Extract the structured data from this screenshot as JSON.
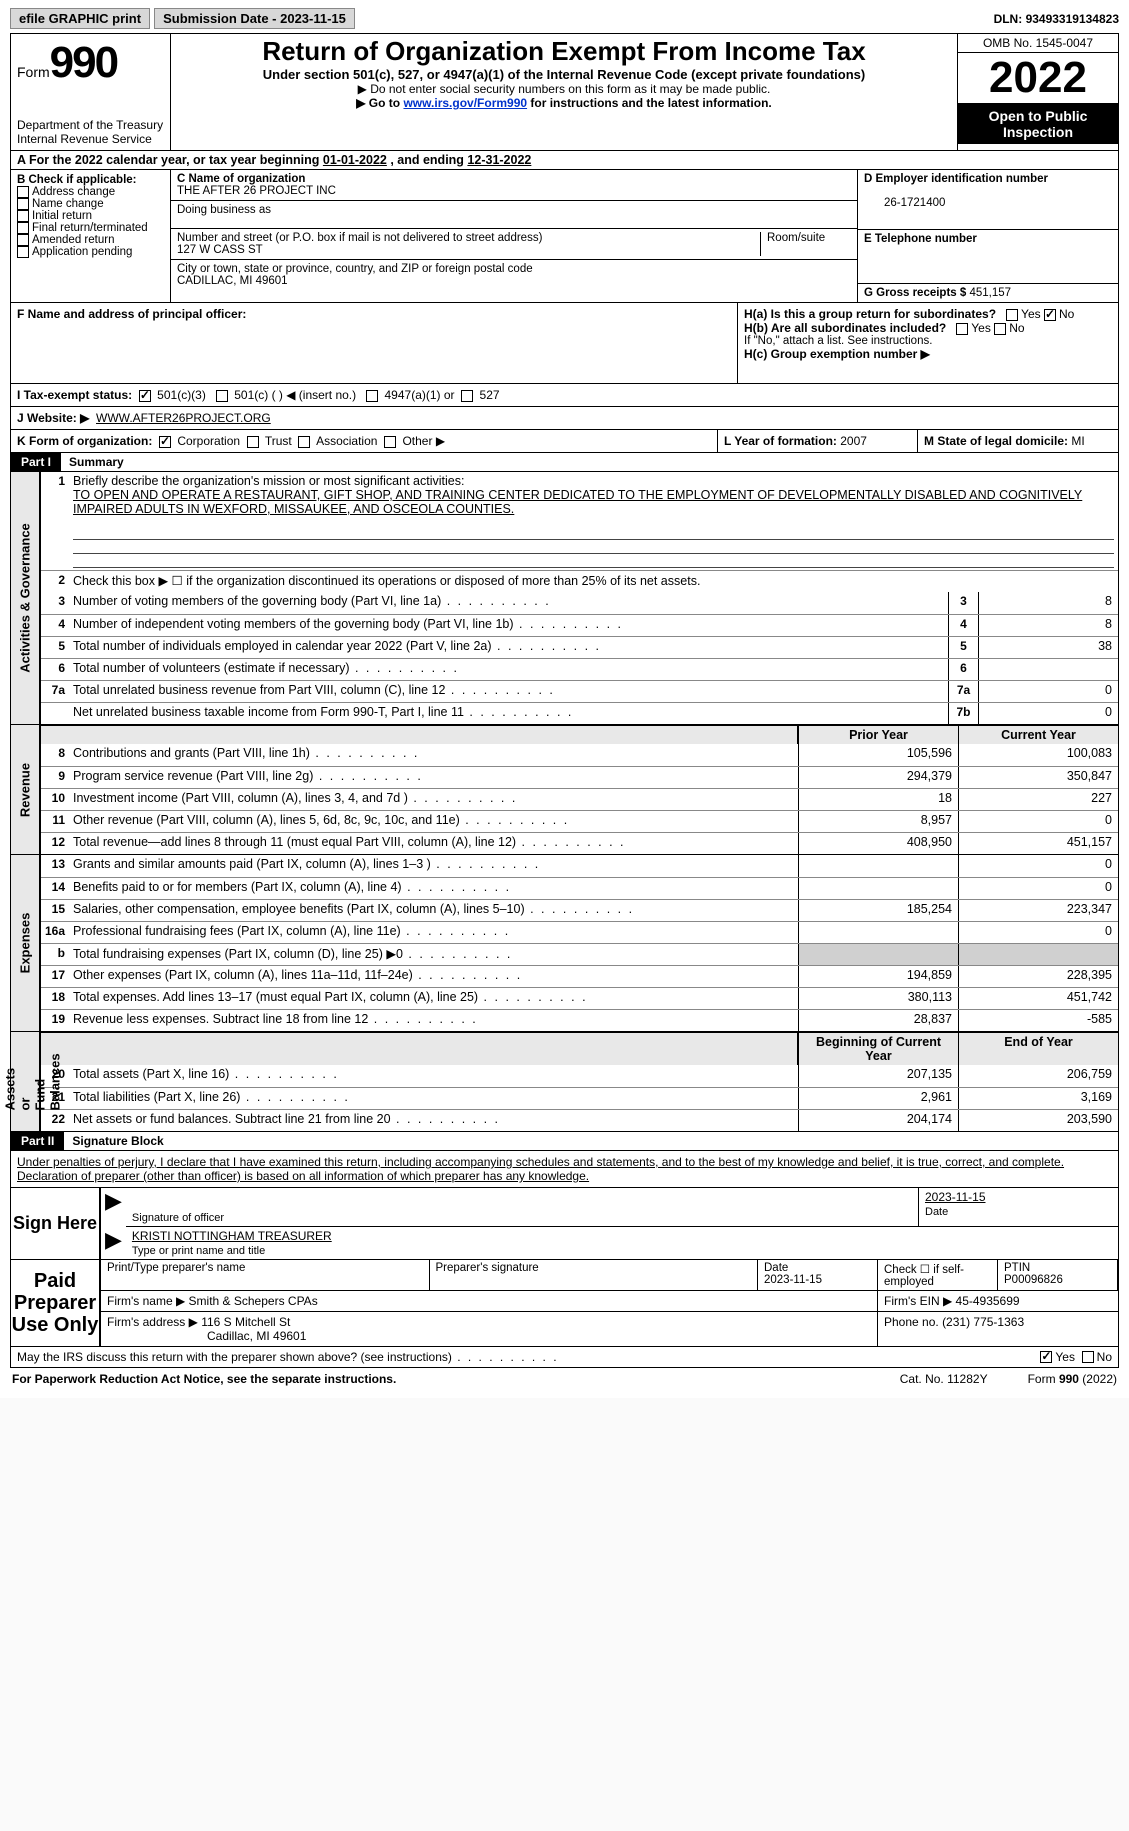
{
  "topbar": {
    "efile": "efile GRAPHIC print",
    "subdate_label": "Submission Date - ",
    "subdate": "2023-11-15",
    "dln_label": "DLN: ",
    "dln": "93493319134823"
  },
  "header": {
    "form_word": "Form",
    "form_num": "990",
    "title": "Return of Organization Exempt From Income Tax",
    "subtitle": "Under section 501(c), 527, or 4947(a)(1) of the Internal Revenue Code (except private foundations)",
    "note1": "▶ Do not enter social security numbers on this form as it may be made public.",
    "note2_pre": "▶ Go to ",
    "note2_link": "www.irs.gov/Form990",
    "note2_post": " for instructions and the latest information.",
    "dept": "Department of the Treasury\nInternal Revenue Service",
    "omb": "OMB No. 1545-0047",
    "year": "2022",
    "open": "Open to Public Inspection"
  },
  "rowA": {
    "text_pre": "A For the 2022 calendar year, or tax year beginning ",
    "begin": "01-01-2022",
    "mid": "   , and ending ",
    "end": "12-31-2022"
  },
  "colB": {
    "head": "B Check if applicable:",
    "opts": [
      "Address change",
      "Name change",
      "Initial return",
      "Final return/terminated",
      "Amended return",
      "Application pending"
    ]
  },
  "colC": {
    "name_label": "C Name of organization",
    "name": "THE AFTER 26 PROJECT INC",
    "dba_label": "Doing business as",
    "addr_label": "Number and street (or P.O. box if mail is not delivered to street address)",
    "room_label": "Room/suite",
    "addr": "127 W CASS ST",
    "city_label": "City or town, state or province, country, and ZIP or foreign postal code",
    "city": "CADILLAC, MI  49601"
  },
  "colD": {
    "ein_label": "D Employer identification number",
    "ein": "26-1721400",
    "phone_label": "E Telephone number",
    "gross_label": "G Gross receipts $ ",
    "gross": "451,157"
  },
  "rowF": {
    "label": "F  Name and address of principal officer:",
    "Ha": "H(a)  Is this a group return for subordinates?",
    "Hb": "H(b)  Are all subordinates included?",
    "Hb_note": "If \"No,\" attach a list. See instructions.",
    "Hc": "H(c)  Group exemption number ▶",
    "yes": "Yes",
    "no": "No"
  },
  "rowI": {
    "label": "I    Tax-exempt status:",
    "o1": "501(c)(3)",
    "o2": "501(c) (   ) ◀ (insert no.)",
    "o3": "4947(a)(1) or",
    "o4": "527"
  },
  "rowJ": {
    "label": "J    Website: ▶",
    "val": "WWW.AFTER26PROJECT.ORG"
  },
  "rowK": {
    "label": "K Form of organization:",
    "o1": "Corporation",
    "o2": "Trust",
    "o3": "Association",
    "o4": "Other ▶",
    "L": "L Year of formation: ",
    "Lval": "2007",
    "M": "M State of legal domicile: ",
    "Mval": "MI"
  },
  "part1": {
    "num": "Part I",
    "title": "Summary",
    "q1_label": "1",
    "q1": "Briefly describe the organization's mission or most significant activities:",
    "q1_val": "TO OPEN AND OPERATE A RESTAURANT, GIFT SHOP, AND TRAINING CENTER DEDICATED TO THE EMPLOYMENT OF DEVELOPMENTALLY DISABLED AND COGNITIVELY IMPAIRED ADULTS IN WEXFORD, MISSAUKEE, AND OSCEOLA COUNTIES.",
    "q2": "Check this box ▶ ☐ if the organization discontinued its operations or disposed of more than 25% of its net assets.",
    "side_ag": "Activities & Governance",
    "side_rev": "Revenue",
    "side_exp": "Expenses",
    "side_na": "Net Assets or\nFund Balances",
    "lines_gov": [
      {
        "n": "3",
        "t": "Number of voting members of the governing body (Part VI, line 1a)",
        "box": "3",
        "v": "8"
      },
      {
        "n": "4",
        "t": "Number of independent voting members of the governing body (Part VI, line 1b)",
        "box": "4",
        "v": "8"
      },
      {
        "n": "5",
        "t": "Total number of individuals employed in calendar year 2022 (Part V, line 2a)",
        "box": "5",
        "v": "38"
      },
      {
        "n": "6",
        "t": "Total number of volunteers (estimate if necessary)",
        "box": "6",
        "v": ""
      },
      {
        "n": "7a",
        "t": "Total unrelated business revenue from Part VIII, column (C), line 12",
        "box": "7a",
        "v": "0"
      },
      {
        "n": "",
        "t": "Net unrelated business taxable income from Form 990-T, Part I, line 11",
        "box": "7b",
        "v": "0"
      }
    ],
    "prior_head": "Prior Year",
    "curr_head": "Current Year",
    "lines_rev": [
      {
        "n": "8",
        "t": "Contributions and grants (Part VIII, line 1h)",
        "p": "105,596",
        "c": "100,083"
      },
      {
        "n": "9",
        "t": "Program service revenue (Part VIII, line 2g)",
        "p": "294,379",
        "c": "350,847"
      },
      {
        "n": "10",
        "t": "Investment income (Part VIII, column (A), lines 3, 4, and 7d )",
        "p": "18",
        "c": "227"
      },
      {
        "n": "11",
        "t": "Other revenue (Part VIII, column (A), lines 5, 6d, 8c, 9c, 10c, and 11e)",
        "p": "8,957",
        "c": "0"
      },
      {
        "n": "12",
        "t": "Total revenue—add lines 8 through 11 (must equal Part VIII, column (A), line 12)",
        "p": "408,950",
        "c": "451,157"
      }
    ],
    "lines_exp": [
      {
        "n": "13",
        "t": "Grants and similar amounts paid (Part IX, column (A), lines 1–3 )",
        "p": "",
        "c": "0"
      },
      {
        "n": "14",
        "t": "Benefits paid to or for members (Part IX, column (A), line 4)",
        "p": "",
        "c": "0"
      },
      {
        "n": "15",
        "t": "Salaries, other compensation, employee benefits (Part IX, column (A), lines 5–10)",
        "p": "185,254",
        "c": "223,347"
      },
      {
        "n": "16a",
        "t": "Professional fundraising fees (Part IX, column (A), line 11e)",
        "p": "",
        "c": "0"
      },
      {
        "n": "b",
        "t": "Total fundraising expenses (Part IX, column (D), line 25) ▶0",
        "p": "shade",
        "c": "shade"
      },
      {
        "n": "17",
        "t": "Other expenses (Part IX, column (A), lines 11a–11d, 11f–24e)",
        "p": "194,859",
        "c": "228,395"
      },
      {
        "n": "18",
        "t": "Total expenses. Add lines 13–17 (must equal Part IX, column (A), line 25)",
        "p": "380,113",
        "c": "451,742"
      },
      {
        "n": "19",
        "t": "Revenue less expenses. Subtract line 18 from line 12",
        "p": "28,837",
        "c": "-585"
      }
    ],
    "boy_head": "Beginning of Current Year",
    "eoy_head": "End of Year",
    "lines_na": [
      {
        "n": "20",
        "t": "Total assets (Part X, line 16)",
        "p": "207,135",
        "c": "206,759"
      },
      {
        "n": "21",
        "t": "Total liabilities (Part X, line 26)",
        "p": "2,961",
        "c": "3,169"
      },
      {
        "n": "22",
        "t": "Net assets or fund balances. Subtract line 21 from line 20",
        "p": "204,174",
        "c": "203,590"
      }
    ]
  },
  "part2": {
    "num": "Part II",
    "title": "Signature Block",
    "decl": "Under penalties of perjury, I declare that I have examined this return, including accompanying schedules and statements, and to the best of my knowledge and belief, it is true, correct, and complete. Declaration of preparer (other than officer) is based on all information of which preparer has any knowledge.",
    "sign_here": "Sign Here",
    "sig_officer": "Signature of officer",
    "sig_date": "2023-11-15",
    "date_lbl": "Date",
    "name_title": "KRISTI NOTTINGHAM  TREASURER",
    "type_name": "Type or print name and title",
    "paid_prep": "Paid Preparer Use Only",
    "prep_name_lbl": "Print/Type preparer's name",
    "prep_sig_lbl": "Preparer's signature",
    "prep_date_lbl": "Date",
    "prep_date": "2023-11-15",
    "check_if": "Check ☐ if self-employed",
    "ptin_lbl": "PTIN",
    "ptin": "P00096826",
    "firm_name_lbl": "Firm's name    ▶ ",
    "firm_name": "Smith & Schepers CPAs",
    "firm_ein_lbl": "Firm's EIN ▶ ",
    "firm_ein": "45-4935699",
    "firm_addr_lbl": "Firm's address ▶ ",
    "firm_addr1": "116 S Mitchell St",
    "firm_addr2": "Cadillac, MI  49601",
    "firm_phone_lbl": "Phone no. ",
    "firm_phone": "(231) 775-1363",
    "may_irs": "May the IRS discuss this return with the preparer shown above? (see instructions)",
    "yes": "Yes",
    "no": "No"
  },
  "footer": {
    "pra": "For Paperwork Reduction Act Notice, see the separate instructions.",
    "cat": "Cat. No. 11282Y",
    "form": "Form 990 (2022)"
  }
}
